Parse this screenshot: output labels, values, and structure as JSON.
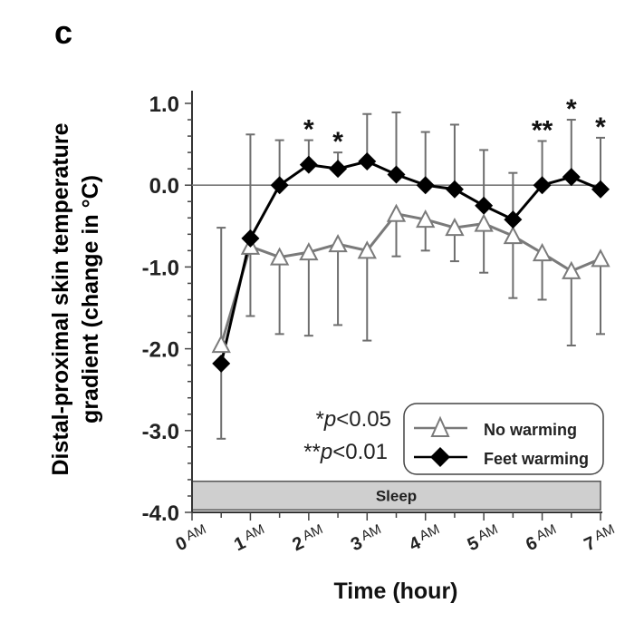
{
  "panel_label": "c",
  "chart_data": {
    "type": "line",
    "title": "",
    "xlabel": "Time (hour)",
    "ylabel_line1": "Distal-proximal skin temperature",
    "ylabel_line2": "gradient (change in °C)",
    "ylim": [
      -4.0,
      1.0
    ],
    "xlim": [
      0,
      7
    ],
    "yticks": [
      1.0,
      0.0,
      -1.0,
      -2.0,
      -3.0,
      -4.0
    ],
    "ytick_labels": [
      "1.0",
      "0.0",
      "-1.0",
      "-2.0",
      "-3.0",
      "-4.0"
    ],
    "xticks": [
      0,
      1,
      2,
      3,
      4,
      5,
      6,
      7
    ],
    "xtick_numbers": [
      "0",
      "1",
      "2",
      "3",
      "4",
      "5",
      "6",
      "7"
    ],
    "xtick_suffix": "AM",
    "reference_line": 0.0,
    "x": [
      0.5,
      1,
      1.5,
      2,
      2.5,
      3,
      3.5,
      4,
      4.5,
      5,
      5.5,
      6,
      6.5,
      7
    ],
    "series": [
      {
        "name": "No warming",
        "marker": "open-triangle",
        "color": "#7a7a7a",
        "values": [
          -1.95,
          -0.75,
          -0.88,
          -0.82,
          -0.72,
          -0.8,
          -0.35,
          -0.42,
          -0.52,
          -0.47,
          -0.62,
          -0.83,
          -1.05,
          -0.9
        ],
        "error_direction": "down",
        "error_ends": [
          -0.52,
          -1.6,
          -1.82,
          -1.84,
          -1.71,
          -1.9,
          -0.87,
          -0.8,
          -0.93,
          -1.07,
          -1.38,
          -1.4,
          -1.96,
          -1.82
        ]
      },
      {
        "name": "Feet warming",
        "marker": "filled-diamond",
        "color": "#000000",
        "values": [
          -2.18,
          -0.65,
          0.0,
          0.25,
          0.2,
          0.29,
          0.13,
          0.0,
          -0.05,
          -0.25,
          -0.42,
          0.0,
          0.1,
          -0.05
        ],
        "error_direction": "up",
        "error_ends": [
          -3.1,
          0.62,
          0.55,
          0.55,
          0.4,
          0.87,
          0.89,
          0.65,
          0.74,
          0.43,
          0.15,
          0.54,
          0.8,
          0.58
        ]
      }
    ],
    "significance": [
      {
        "x": 2,
        "label": "*"
      },
      {
        "x": 2.5,
        "label": "*"
      },
      {
        "x": 6,
        "label": "**"
      },
      {
        "x": 6.5,
        "label": "*"
      },
      {
        "x": 7,
        "label": "*"
      }
    ],
    "sig_legend": [
      "*p<0.05",
      "**p<0.01"
    ],
    "sig_legend_parts": [
      {
        "stars": "*",
        "p": "p",
        "rest": "<0.05"
      },
      {
        "stars": "**",
        "p": "p",
        "rest": "<0.01"
      }
    ],
    "sleep_bar": {
      "label": "Sleep",
      "from": 0,
      "to": 7
    },
    "legend_position": "bottom-right",
    "grid": false
  }
}
